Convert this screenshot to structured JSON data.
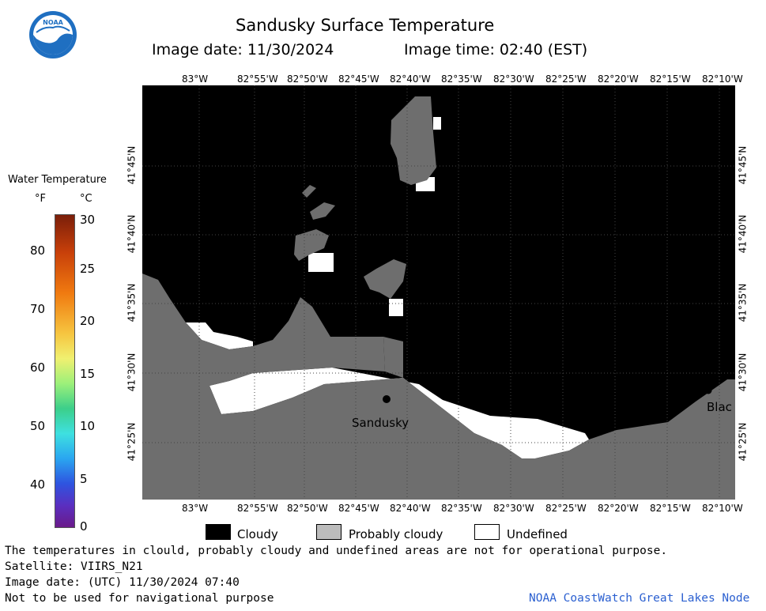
{
  "header": {
    "title": "Sandusky Surface Temperature",
    "image_date": "Image date: 11/30/2024",
    "image_time": "Image time: 02:40 (EST)"
  },
  "logo": {
    "text": "NOAA"
  },
  "colorbar": {
    "title": "Water Temperature",
    "unit_f": "°F",
    "unit_c": "°C",
    "f_ticks": [
      "80",
      "70",
      "60",
      "50",
      "40"
    ],
    "c_ticks": [
      "30",
      "25",
      "20",
      "15",
      "10",
      "5",
      "0"
    ]
  },
  "map": {
    "lon_labels": [
      "83°W",
      "82°55'W",
      "82°50'W",
      "82°45'W",
      "82°40'W",
      "82°35'W",
      "82°30'W",
      "82°25'W",
      "82°20'W",
      "82°15'W",
      "82°10'W"
    ],
    "lat_labels": [
      "41°45'N",
      "41°40'N",
      "41°35'N",
      "41°30'N",
      "41°25'N"
    ],
    "places": {
      "sandusky": "Sandusky",
      "marblehead": "Blac"
    },
    "colors": {
      "cloudy": "#000000",
      "probably_cloudy": "#6e6e6e",
      "undefined": "#ffffff"
    }
  },
  "legend": {
    "cloudy": "Cloudy",
    "probably_cloudy": "Probably cloudy",
    "undefined": "Undefined"
  },
  "footer": {
    "disclaimer": "The temperatures in clould, probably cloudy and undefined areas are not for operational purpose.",
    "satellite": "Satellite: VIIRS_N21",
    "utc_date": "Image date: (UTC) 11/30/2024  07:40",
    "navigation": "Not to be used for navigational purpose",
    "credit": "NOAA CoastWatch Great Lakes Node"
  }
}
